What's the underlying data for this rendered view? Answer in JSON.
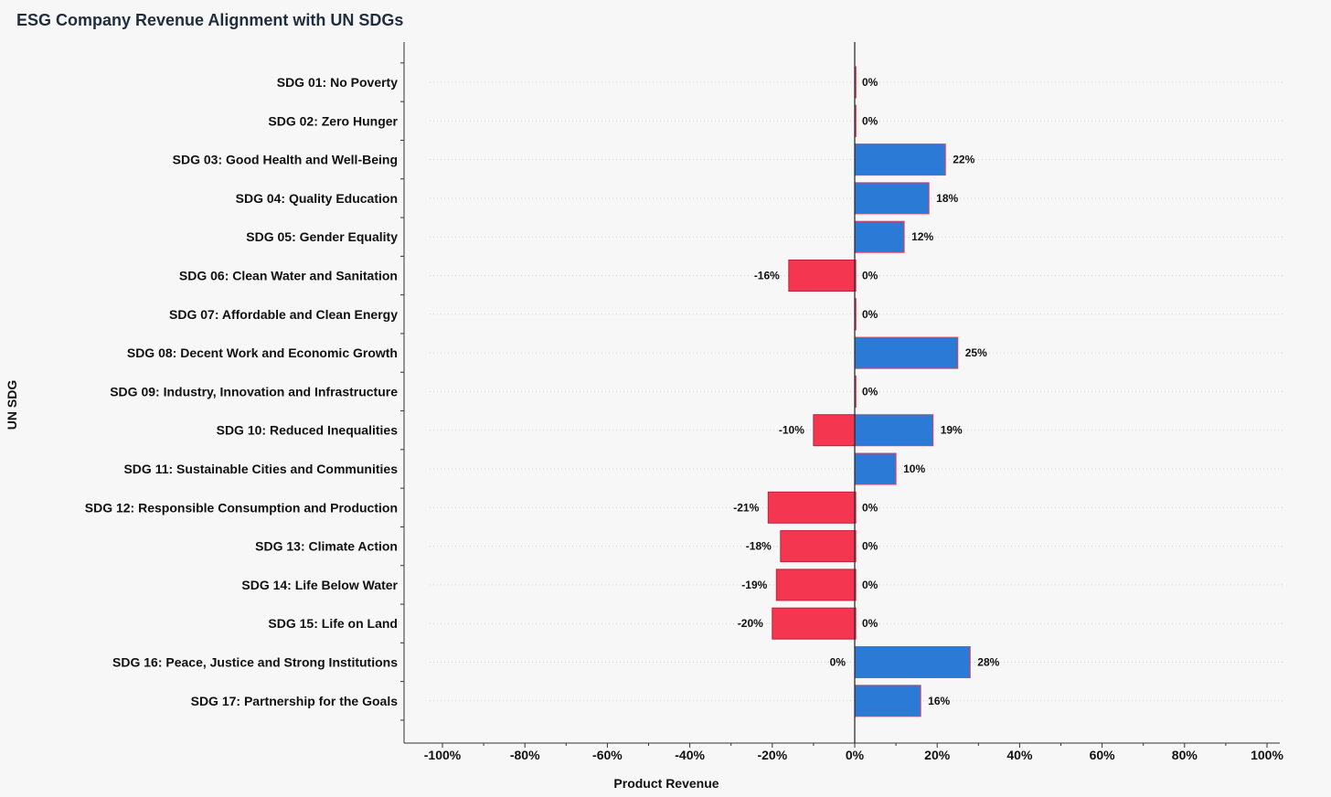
{
  "chart_data": {
    "type": "bar",
    "orientation": "horizontal",
    "title": "ESG Company Revenue Alignment with UN SDGs",
    "xlabel": "Product Revenue",
    "ylabel": "UN SDG",
    "xlim": [
      -100,
      100
    ],
    "xticks": [
      -100,
      -80,
      -60,
      -40,
      -20,
      0,
      20,
      40,
      60,
      80,
      100
    ],
    "xtick_labels": [
      "-100%",
      "-80%",
      "-60%",
      "-40%",
      "-20%",
      "0%",
      "20%",
      "40%",
      "60%",
      "80%",
      "100%"
    ],
    "grid": "horizontal dotted",
    "categories": [
      "SDG 01: No Poverty",
      "SDG 02: Zero Hunger",
      "SDG 03: Good Health and Well-Being",
      "SDG 04: Quality Education",
      "SDG 05: Gender Equality",
      "SDG 06: Clean Water and Sanitation",
      "SDG 07: Affordable and Clean Energy",
      "SDG 08: Decent Work and Economic Growth",
      "SDG 09: Industry, Innovation and Infrastructure",
      "SDG 10: Reduced Inequalities",
      "SDG 11: Sustainable Cities and Communities",
      "SDG 12: Responsible Consumption and Production",
      "SDG 13: Climate Action",
      "SDG 14: Life Below Water",
      "SDG 15: Life on Land",
      "SDG 16: Peace, Justice and Strong Institutions",
      "SDG 17: Partnership for the Goals"
    ],
    "series": [
      {
        "color": "#f43650",
        "values": [
          0,
          0,
          0,
          0,
          0,
          -16,
          0,
          0,
          0,
          -10,
          0,
          -21,
          -18,
          -19,
          -20,
          0,
          0
        ],
        "labels": [
          "",
          "",
          "",
          "",
          "",
          "-16%",
          "",
          "",
          "",
          "-10%",
          "",
          "-21%",
          "-18%",
          "-19%",
          "-20%",
          "0%",
          ""
        ]
      },
      {
        "color": "#2b7bd6",
        "values": [
          0,
          0,
          22,
          18,
          12,
          0,
          0,
          25,
          0,
          19,
          10,
          0,
          0,
          0,
          0,
          28,
          16
        ],
        "labels": [
          "0%",
          "0%",
          "22%",
          "18%",
          "12%",
          "0%",
          "0%",
          "25%",
          "0%",
          "19%",
          "10%",
          "0%",
          "0%",
          "0%",
          "0%",
          "28%",
          "16%"
        ]
      }
    ]
  }
}
